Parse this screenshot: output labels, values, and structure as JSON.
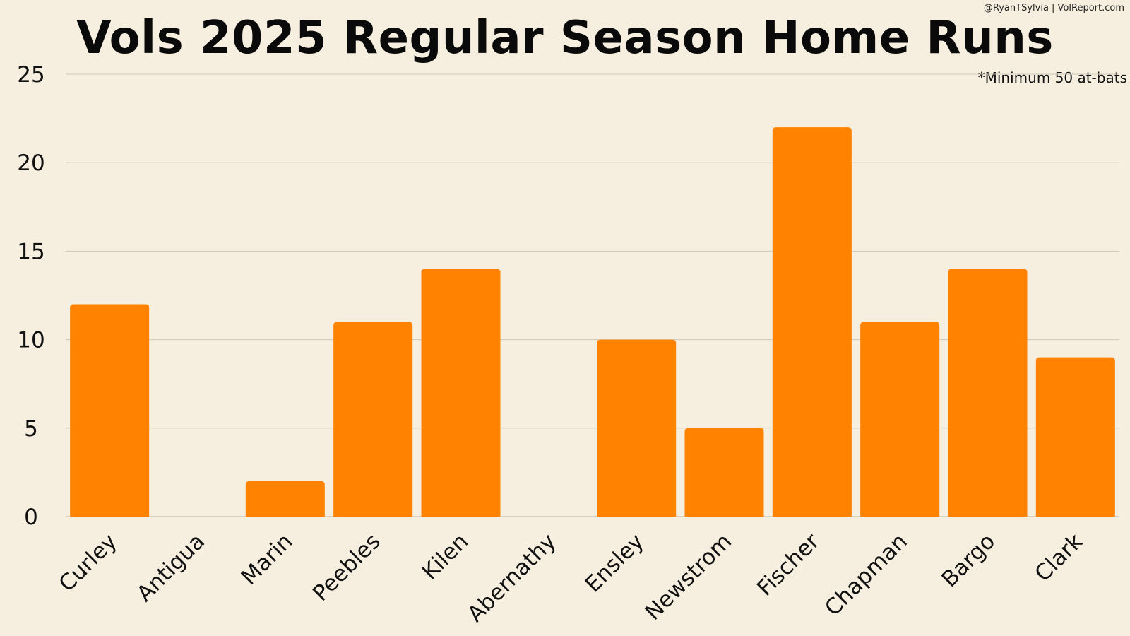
{
  "credit": "@RyanTSylvia | VolReport.com",
  "note": "*Minimum 50 at-bats",
  "colors": {
    "background": "#f6efdf",
    "bar": "#ff8200",
    "grid": "#cfc8b8",
    "text": "#111111"
  },
  "chart_data": {
    "type": "bar",
    "title": "Vols 2025 Regular Season Home Runs",
    "xlabel": "",
    "ylabel": "",
    "categories": [
      "Curley",
      "Antigua",
      "Marin",
      "Peebles",
      "Kilen",
      "Abernathy",
      "Ensley",
      "Newstrom",
      "Fischer",
      "Chapman",
      "Bargo",
      "Clark"
    ],
    "values": [
      12,
      0,
      2,
      11,
      14,
      0,
      10,
      5,
      22,
      11,
      14,
      9
    ],
    "ylim": [
      0,
      25
    ],
    "yticks": [
      0,
      5,
      10,
      15,
      20,
      25
    ],
    "grid": true,
    "legend": "none"
  }
}
